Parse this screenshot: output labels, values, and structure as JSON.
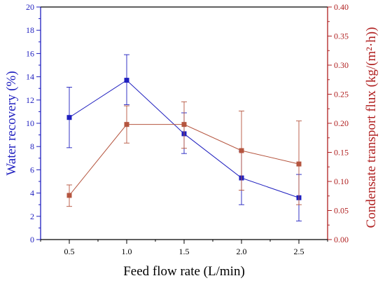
{
  "chart_data": {
    "type": "line",
    "x": [
      0.5,
      1.0,
      1.5,
      2.0,
      2.5
    ],
    "xticks": [
      "0.5",
      "1.0",
      "1.5",
      "2.0",
      "2.5"
    ],
    "xlim": [
      0.25,
      2.75
    ],
    "xlabel": "Feed flow rate (L/min)",
    "ylabel_left": "Water recovery (%)",
    "ylabel_right": "Condensate transport flux (kg/(m²·h))",
    "ylim_left": [
      0,
      20
    ],
    "ylim_right": [
      0,
      0.4
    ],
    "yticks_left": [
      "0",
      "2",
      "4",
      "6",
      "8",
      "10",
      "12",
      "14",
      "16",
      "18",
      "20"
    ],
    "yticks_right": [
      "0.00",
      "0.05",
      "0.10",
      "0.15",
      "0.20",
      "0.25",
      "0.30",
      "0.35",
      "0.40"
    ],
    "series": [
      {
        "axis": "left",
        "color": "#1f1fbf",
        "values": [
          10.5,
          13.7,
          9.1,
          5.3,
          3.6
        ],
        "err_low": [
          7.9,
          11.6,
          7.4,
          3.0,
          1.6
        ],
        "err_high": [
          13.1,
          15.9,
          10.9,
          7.6,
          5.6
        ]
      },
      {
        "axis": "right",
        "color": "#b5553f",
        "values": [
          0.076,
          0.198,
          0.198,
          0.153,
          0.13
        ],
        "err_low": [
          0.057,
          0.166,
          0.157,
          0.085,
          0.06
        ],
        "err_high": [
          0.094,
          0.23,
          0.237,
          0.221,
          0.204
        ]
      }
    ],
    "left_axis_color": "#1f1fbf",
    "right_axis_color": "#b02020",
    "grid": false
  }
}
